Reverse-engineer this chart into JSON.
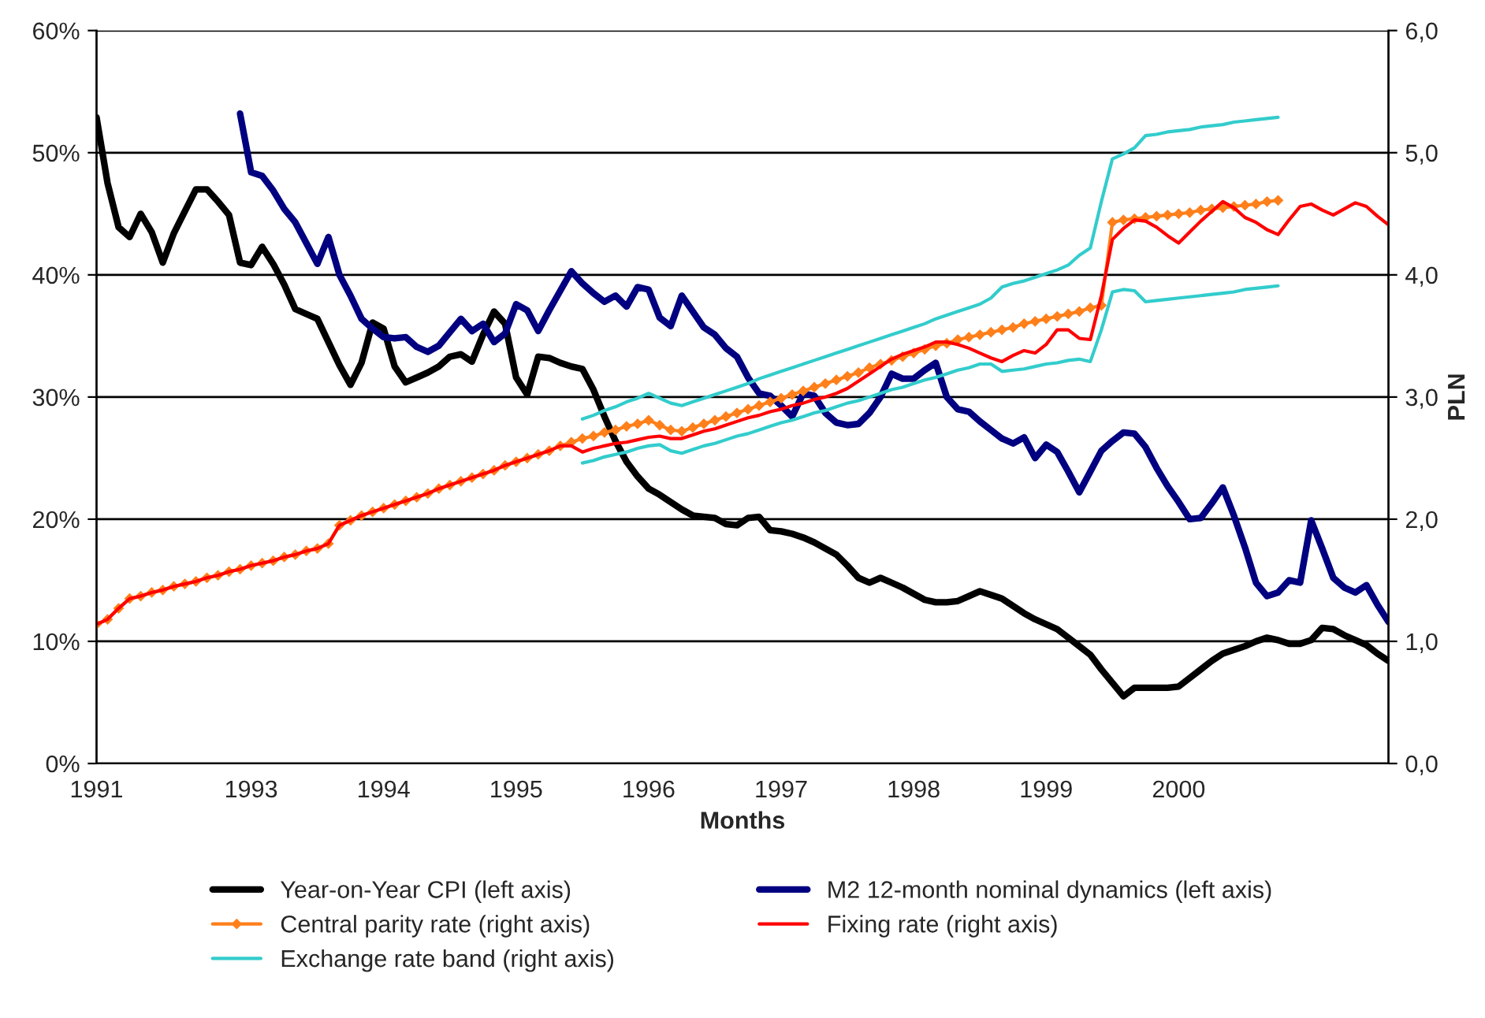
{
  "chart_data": {
    "type": "line",
    "xlabel": "Months",
    "y2label": "PLN",
    "categories": [
      "1991",
      null,
      null,
      null,
      null,
      null,
      null,
      null,
      null,
      null,
      null,
      null,
      null,
      null,
      "1993",
      null,
      null,
      null,
      null,
      null,
      null,
      null,
      null,
      null,
      null,
      null,
      "1994",
      null,
      null,
      null,
      null,
      null,
      null,
      null,
      null,
      null,
      null,
      null,
      "1995",
      null,
      null,
      null,
      null,
      null,
      null,
      null,
      null,
      null,
      null,
      null,
      "1996",
      null,
      null,
      null,
      null,
      null,
      null,
      null,
      null,
      null,
      null,
      null,
      "1997",
      null,
      null,
      null,
      null,
      null,
      null,
      null,
      null,
      null,
      null,
      null,
      "1998",
      null,
      null,
      null,
      null,
      null,
      null,
      null,
      null,
      null,
      null,
      null,
      "1999",
      null,
      null,
      null,
      null,
      null,
      null,
      null,
      null,
      null,
      null,
      null,
      "2000",
      null,
      null,
      null,
      null,
      null,
      null,
      null,
      null,
      null,
      null,
      null,
      null,
      null,
      null,
      null,
      null,
      null,
      null,
      null
    ],
    "ylim": [
      0,
      60
    ],
    "yticks": [
      {
        "value": 0,
        "label": "0%"
      },
      {
        "value": 10,
        "label": "10%"
      },
      {
        "value": 20,
        "label": "20%"
      },
      {
        "value": 30,
        "label": "30%"
      },
      {
        "value": 40,
        "label": "40%"
      },
      {
        "value": 50,
        "label": "50%"
      },
      {
        "value": 60,
        "label": "60%"
      }
    ],
    "y2lim": [
      0,
      6
    ],
    "y2ticks": [
      {
        "value": 0,
        "label": "0,0"
      },
      {
        "value": 1,
        "label": "1,0"
      },
      {
        "value": 2,
        "label": "2,0"
      },
      {
        "value": 3,
        "label": "3,0"
      },
      {
        "value": 4,
        "label": "4,0"
      },
      {
        "value": 5,
        "label": "5,0"
      },
      {
        "value": 6,
        "label": "6,0"
      }
    ],
    "grid": "y",
    "legend": "bottom",
    "series": [
      {
        "name": "Year-on-Year CPI (left axis)",
        "color": "#000000",
        "values": [
          52.9,
          47.5,
          43.9,
          43.1,
          45.0,
          43.5,
          41.0,
          43.4,
          45.2,
          47.0,
          47.0,
          46.0,
          44.9,
          41.0,
          40.8,
          42.3,
          40.9,
          39.2,
          37.2,
          36.8,
          36.4,
          34.5,
          32.6,
          31.0,
          32.8,
          36.1,
          35.6,
          32.5,
          31.2,
          31.6,
          32.0,
          32.5,
          33.3,
          33.5,
          32.9,
          35.1,
          37.0,
          36.0,
          31.6,
          30.2,
          33.3,
          33.2,
          32.8,
          32.5,
          32.3,
          30.6,
          28.4,
          26.4,
          24.7,
          23.5,
          22.5,
          22.0,
          21.4,
          20.8,
          20.3,
          20.2,
          20.1,
          19.6,
          19.5,
          20.1,
          20.2,
          19.1,
          19.0,
          18.8,
          18.5,
          18.1,
          17.6,
          17.1,
          16.2,
          15.2,
          14.8,
          15.2,
          14.8,
          14.4,
          13.9,
          13.4,
          13.2,
          13.2,
          13.3,
          13.7,
          14.1,
          13.8,
          13.5,
          12.9,
          12.3,
          11.8,
          11.4,
          11.0,
          10.3,
          9.6,
          8.9,
          7.7,
          6.6,
          5.5,
          6.2,
          6.2,
          6.2,
          6.2,
          6.3,
          7.0,
          7.7,
          8.4,
          9.0,
          9.3,
          9.6,
          10.0,
          10.3,
          10.1,
          9.8,
          9.8,
          10.1,
          11.1,
          11.0,
          10.5,
          10.1,
          9.7,
          9.0,
          8.4
        ]
      },
      {
        "name": "M2 12-month nominal dynamics (left axis)",
        "color": "#000080",
        "values": [
          null,
          null,
          null,
          null,
          null,
          null,
          null,
          null,
          null,
          null,
          null,
          null,
          null,
          53.2,
          48.4,
          48.1,
          46.9,
          45.4,
          44.3,
          42.6,
          40.9,
          43.1,
          40.0,
          38.3,
          36.4,
          35.6,
          34.9,
          34.8,
          34.9,
          34.1,
          33.7,
          34.2,
          35.3,
          36.4,
          35.4,
          36.0,
          34.5,
          35.2,
          37.6,
          37.1,
          35.4,
          37.1,
          38.7,
          40.3,
          39.3,
          38.5,
          37.8,
          38.3,
          37.4,
          39.0,
          38.8,
          36.5,
          35.8,
          38.3,
          37.0,
          35.7,
          35.1,
          34.0,
          33.3,
          31.6,
          30.3,
          30.1,
          29.3,
          28.4,
          30.3,
          30.1,
          28.7,
          27.9,
          27.7,
          27.8,
          28.7,
          30.0,
          31.9,
          31.5,
          31.5,
          32.2,
          32.8,
          30.0,
          29.0,
          28.8,
          28.0,
          27.3,
          26.6,
          26.2,
          26.7,
          25.0,
          26.1,
          25.5,
          23.9,
          22.2,
          23.9,
          25.6,
          26.4,
          27.1,
          27.0,
          25.9,
          24.2,
          22.7,
          21.4,
          20.0,
          20.1,
          21.3,
          22.6,
          20.3,
          17.7,
          14.8,
          13.7,
          14.0,
          15.0,
          14.8,
          19.9,
          17.6,
          15.2,
          14.4,
          14.0,
          14.6,
          13.0,
          11.6
        ]
      },
      {
        "name": "Central parity rate (right axis)",
        "color": "#ff7f1a",
        "axis": "y2",
        "marker": "diamond",
        "values": [
          1.14,
          1.18,
          1.27,
          1.35,
          1.37,
          1.4,
          1.42,
          1.45,
          1.47,
          1.49,
          1.52,
          1.54,
          1.57,
          1.59,
          1.62,
          1.64,
          1.66,
          1.69,
          1.71,
          1.74,
          1.76,
          1.8,
          1.95,
          1.99,
          2.03,
          2.06,
          2.09,
          2.12,
          2.15,
          2.18,
          2.21,
          2.25,
          2.28,
          2.31,
          2.34,
          2.37,
          2.4,
          2.44,
          2.47,
          2.5,
          2.53,
          2.56,
          2.6,
          2.63,
          2.66,
          2.68,
          2.71,
          2.73,
          2.76,
          2.78,
          2.81,
          2.77,
          2.73,
          2.72,
          2.75,
          2.78,
          2.81,
          2.84,
          2.87,
          2.9,
          2.93,
          2.96,
          2.99,
          3.02,
          3.05,
          3.08,
          3.11,
          3.14,
          3.17,
          3.2,
          3.24,
          3.27,
          3.3,
          3.33,
          3.36,
          3.39,
          3.42,
          3.44,
          3.47,
          3.49,
          3.51,
          3.53,
          3.55,
          3.57,
          3.6,
          3.62,
          3.64,
          3.66,
          3.68,
          3.7,
          3.73,
          3.75,
          4.43,
          4.45,
          4.46,
          4.47,
          4.48,
          4.49,
          4.5,
          4.51,
          4.53,
          4.54,
          4.55,
          4.56,
          4.57,
          4.58,
          4.6,
          4.61,
          null,
          null,
          null,
          null,
          null,
          null,
          null,
          null,
          null,
          null
        ]
      },
      {
        "name": "Fixing rate (right axis)",
        "color": "#ff0000",
        "axis": "y2",
        "values": [
          1.14,
          1.18,
          1.27,
          1.35,
          1.37,
          1.4,
          1.42,
          1.45,
          1.47,
          1.49,
          1.52,
          1.54,
          1.57,
          1.59,
          1.62,
          1.64,
          1.66,
          1.69,
          1.71,
          1.74,
          1.76,
          1.8,
          1.95,
          1.99,
          2.03,
          2.06,
          2.09,
          2.12,
          2.15,
          2.18,
          2.21,
          2.25,
          2.28,
          2.31,
          2.34,
          2.37,
          2.4,
          2.44,
          2.47,
          2.5,
          2.53,
          2.56,
          2.6,
          2.6,
          2.55,
          2.58,
          2.6,
          2.62,
          2.63,
          2.65,
          2.67,
          2.68,
          2.66,
          2.66,
          2.69,
          2.72,
          2.74,
          2.77,
          2.8,
          2.83,
          2.85,
          2.88,
          2.9,
          2.93,
          2.95,
          2.98,
          3.0,
          3.03,
          3.07,
          3.13,
          3.19,
          3.25,
          3.31,
          3.35,
          3.38,
          3.41,
          3.45,
          3.45,
          3.43,
          3.4,
          3.36,
          3.32,
          3.29,
          3.34,
          3.38,
          3.36,
          3.43,
          3.55,
          3.55,
          3.48,
          3.47,
          3.83,
          4.29,
          4.38,
          4.45,
          4.44,
          4.39,
          4.32,
          4.26,
          4.35,
          4.44,
          4.52,
          4.6,
          4.55,
          4.47,
          4.43,
          4.37,
          4.33,
          4.45,
          4.56,
          4.58,
          4.53,
          4.49,
          4.54,
          4.59,
          4.56,
          4.48,
          4.41
        ]
      },
      {
        "name": "Exchange rate band (right axis)",
        "color": "#33cccc",
        "axis": "y2",
        "values": [
          null,
          null,
          null,
          null,
          null,
          null,
          null,
          null,
          null,
          null,
          null,
          null,
          null,
          null,
          null,
          null,
          null,
          null,
          null,
          null,
          null,
          null,
          null,
          null,
          null,
          null,
          null,
          null,
          null,
          null,
          null,
          null,
          null,
          null,
          null,
          null,
          null,
          null,
          null,
          null,
          null,
          null,
          null,
          null,
          2.82,
          2.85,
          2.89,
          2.92,
          2.96,
          2.99,
          3.03,
          2.99,
          2.95,
          2.93,
          2.96,
          2.99,
          3.02,
          3.05,
          3.08,
          3.11,
          3.15,
          3.18,
          3.21,
          3.24,
          3.27,
          3.3,
          3.33,
          3.36,
          3.39,
          3.42,
          3.45,
          3.48,
          3.51,
          3.54,
          3.57,
          3.6,
          3.64,
          3.67,
          3.7,
          3.73,
          3.76,
          3.81,
          3.9,
          3.93,
          3.95,
          3.98,
          4.01,
          4.04,
          4.08,
          4.16,
          4.22,
          4.6,
          4.95,
          4.99,
          5.04,
          5.14,
          5.15,
          5.17,
          5.18,
          5.19,
          5.21,
          5.22,
          5.23,
          5.25,
          5.26,
          5.27,
          5.28,
          5.29,
          null,
          null,
          null,
          null,
          null,
          null,
          null,
          null,
          null,
          null
        ]
      },
      {
        "color": "#33cccc",
        "axis": "y2",
        "values": [
          null,
          null,
          null,
          null,
          null,
          null,
          null,
          null,
          null,
          null,
          null,
          null,
          null,
          null,
          null,
          null,
          null,
          null,
          null,
          null,
          null,
          null,
          null,
          null,
          null,
          null,
          null,
          null,
          null,
          null,
          null,
          null,
          null,
          null,
          null,
          null,
          null,
          null,
          null,
          null,
          null,
          null,
          null,
          null,
          2.46,
          2.48,
          2.51,
          2.53,
          2.55,
          2.58,
          2.6,
          2.61,
          2.56,
          2.54,
          2.57,
          2.6,
          2.62,
          2.65,
          2.68,
          2.7,
          2.73,
          2.76,
          2.79,
          2.81,
          2.84,
          2.87,
          2.89,
          2.92,
          2.95,
          2.97,
          3.0,
          3.03,
          3.06,
          3.08,
          3.11,
          3.14,
          3.16,
          3.19,
          3.22,
          3.24,
          3.27,
          3.27,
          3.21,
          3.22,
          3.23,
          3.25,
          3.27,
          3.28,
          3.3,
          3.31,
          3.29,
          3.55,
          3.86,
          3.88,
          3.87,
          3.78,
          3.79,
          3.8,
          3.81,
          3.82,
          3.83,
          3.84,
          3.85,
          3.86,
          3.88,
          3.89,
          3.9,
          3.91,
          null,
          null,
          null,
          null,
          null,
          null,
          null,
          null,
          null,
          null
        ]
      }
    ]
  }
}
